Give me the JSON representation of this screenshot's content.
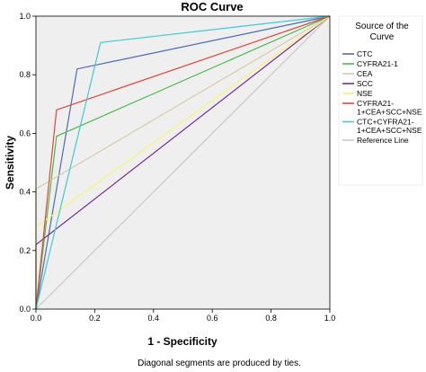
{
  "chart_data": {
    "type": "line",
    "title": "ROC Curve",
    "xlabel": "1 - Specificity",
    "ylabel": "Sensitivity",
    "xlim": [
      0,
      1
    ],
    "ylim": [
      0,
      1
    ],
    "xticks": [
      "0.0",
      "0.2",
      "0.4",
      "0.6",
      "0.8",
      "1.0"
    ],
    "yticks": [
      "0.0",
      "0.2",
      "0.4",
      "0.6",
      "0.8",
      "1.0"
    ],
    "grid": false,
    "plot_background": "#efefef",
    "legend": {
      "title": [
        "Source of the",
        "Curve"
      ],
      "position": "right"
    },
    "series": [
      {
        "name": [
          "CTC"
        ],
        "color": "#4e6ab3",
        "x": [
          0,
          0.14,
          1
        ],
        "y": [
          0,
          0.82,
          1
        ]
      },
      {
        "name": [
          "CYFRA21-1"
        ],
        "color": "#4cbb4c",
        "x": [
          0,
          0.07,
          1
        ],
        "y": [
          0,
          0.59,
          1
        ]
      },
      {
        "name": [
          "CEA"
        ],
        "color": "#d6cca8",
        "x": [
          0,
          0,
          1
        ],
        "y": [
          0,
          0.41,
          1
        ]
      },
      {
        "name": [
          "SCC"
        ],
        "color": "#7a2c91",
        "x": [
          0,
          0,
          1
        ],
        "y": [
          0,
          0.22,
          1
        ]
      },
      {
        "name": [
          "NSE"
        ],
        "color": "#f5f576",
        "x": [
          0,
          0,
          1
        ],
        "y": [
          0,
          0.28,
          1
        ]
      },
      {
        "name": [
          "CYFRA21-",
          "1+CEA+SCC+NSE"
        ],
        "color": "#e0463a",
        "x": [
          0,
          0.07,
          1
        ],
        "y": [
          0,
          0.68,
          1
        ]
      },
      {
        "name": [
          "CTC+CYFRA21-",
          "1+CEA+SCC+NSE"
        ],
        "color": "#42c9d6",
        "x": [
          0,
          0.22,
          1
        ],
        "y": [
          0,
          0.91,
          1
        ]
      },
      {
        "name": [
          "Reference Line"
        ],
        "color": "#c8c8c8",
        "x": [
          0,
          1
        ],
        "y": [
          0,
          1
        ]
      }
    ],
    "footnote": "Diagonal segments are produced by ties."
  }
}
